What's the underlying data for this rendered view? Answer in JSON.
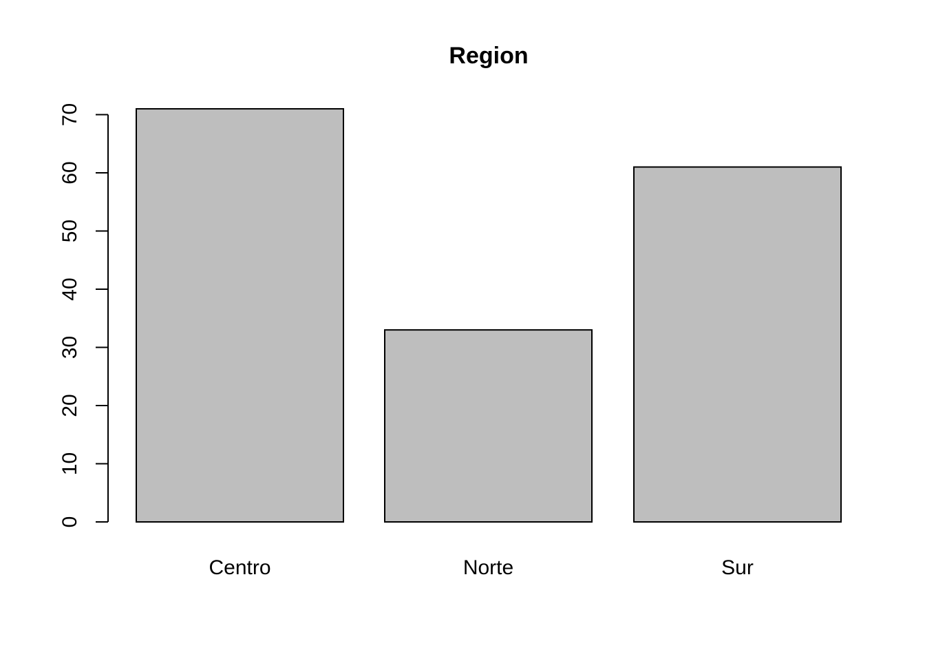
{
  "chart_data": {
    "type": "bar",
    "title": "Region",
    "xlabel": "",
    "ylabel": "",
    "categories": [
      "Centro",
      "Norte",
      "Sur"
    ],
    "values": [
      71,
      33,
      61
    ],
    "ylim": [
      0,
      71
    ],
    "yticks": [
      0,
      10,
      20,
      30,
      40,
      50,
      60,
      70
    ],
    "bar_color": "#bebebe",
    "grid": false
  }
}
